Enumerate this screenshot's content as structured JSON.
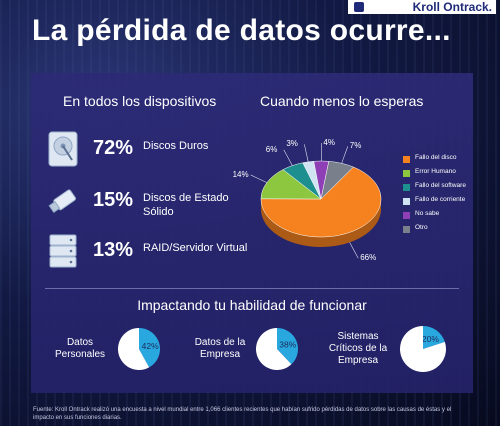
{
  "brand": {
    "logo_text": "Kroll Ontrack."
  },
  "header": {
    "title": "La pérdida de datos ocurre..."
  },
  "devices": {
    "section_title": "En todos los dispositivos",
    "items": [
      {
        "icon": "hard-drive-icon",
        "pct": "72%",
        "label": "Discos Duros"
      },
      {
        "icon": "usb-drive-icon",
        "pct": "15%",
        "label": "Discos de Estado Sólido"
      },
      {
        "icon": "server-icon",
        "pct": "13%",
        "label": "RAID/Servidor Virtual"
      }
    ]
  },
  "causes": {
    "section_title": "Cuando menos lo esperas"
  },
  "impact": {
    "section_title": "Impactando tu habilidad de funcionar",
    "items": [
      {
        "label": "Datos Personales",
        "pct_label": "42%"
      },
      {
        "label": "Datos de la Empresa",
        "pct_label": "38%"
      },
      {
        "label": "Sistemas Críticos de la Empresa",
        "pct_label": "20%"
      }
    ]
  },
  "footer": {
    "source": "Fuente: Kroll Ontrack realizó una encuesta a nivel mundial entre 1,066 clientes recientes que habían sufrido pérdidas de datos sobre las causas de éstas y el impacto en sus funciones diarias."
  },
  "chart_data": [
    {
      "type": "pie",
      "title": "Cuando menos lo esperas",
      "categories": [
        "Fallo del disco",
        "Error Humano",
        "Fallo del software",
        "Fallo de corriente",
        "No sabe",
        "Otro"
      ],
      "values": [
        66,
        14,
        6,
        3,
        4,
        7
      ],
      "data_labels": [
        "66%",
        "14%",
        "6%",
        "3%",
        "4%",
        "7%"
      ],
      "colors": [
        "#f5821f",
        "#8dc63f",
        "#1e8f8f",
        "#cfe3f3",
        "#8e3fb5",
        "#7a7f8c"
      ],
      "legend": "right"
    },
    {
      "type": "pie",
      "title": "Datos Personales",
      "categories": [
        "Datos Personales",
        "resto"
      ],
      "values": [
        42,
        58
      ],
      "colors": [
        "#29a8e0",
        "#ffffff"
      ]
    },
    {
      "type": "pie",
      "title": "Datos de la Empresa",
      "categories": [
        "Datos de la Empresa",
        "resto"
      ],
      "values": [
        38,
        62
      ],
      "colors": [
        "#29a8e0",
        "#ffffff"
      ]
    },
    {
      "type": "pie",
      "title": "Sistemas Críticos de la Empresa",
      "categories": [
        "Sistemas Críticos de la Empresa",
        "resto"
      ],
      "values": [
        20,
        80
      ],
      "colors": [
        "#29a8e0",
        "#ffffff"
      ]
    }
  ]
}
